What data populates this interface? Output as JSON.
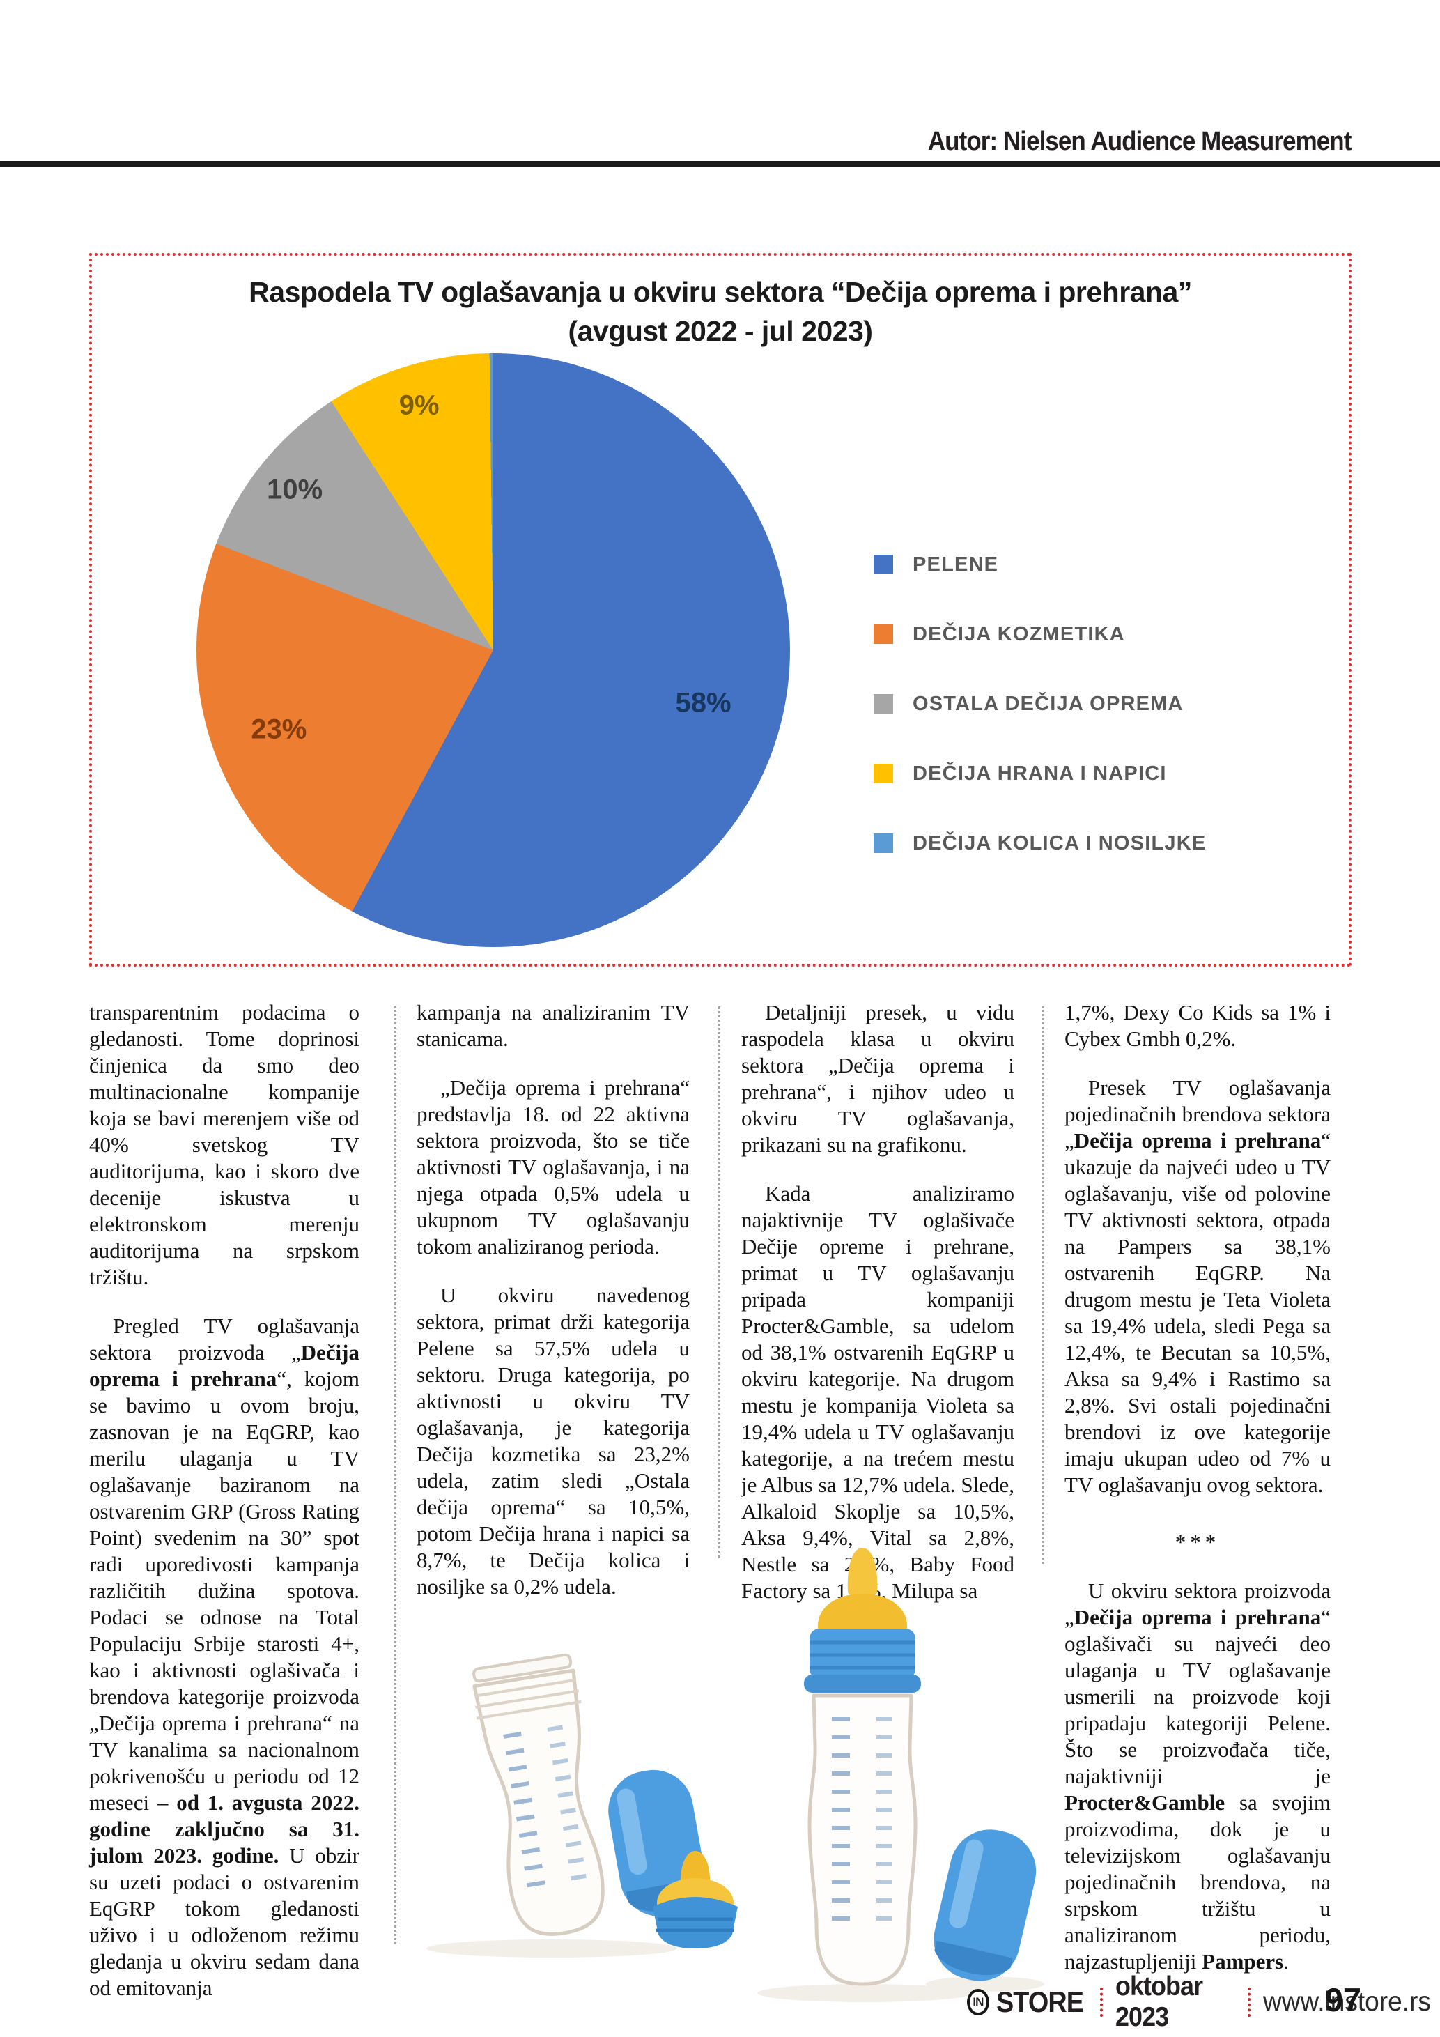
{
  "header": {
    "author_credit": "Autor: Nielsen Audience Measurement"
  },
  "chart": {
    "title_line1": "Raspodela TV oglašavanja u okviru sektora “Dečija oprema i prehrana”",
    "title_line2": "(avgust 2022 - jul 2023)"
  },
  "chart_data": {
    "type": "pie",
    "title": "Raspodela TV oglašavanja u okviru sektora “Dečija oprema i prehrana” (avgust 2022 - jul 2023)",
    "categories": [
      "PELENE",
      "DEČIJA KOZMETIKA",
      "OSTALA DEČIJA OPREMA",
      "DEČIJA HRANA I NAPICI",
      "DEČIJA KOLICA I NOSILJKE"
    ],
    "values": [
      58,
      23,
      10,
      9,
      0.2
    ],
    "display_labels": [
      "58%",
      "23%",
      "10%",
      "9%",
      ""
    ],
    "colors": [
      "#4472c4",
      "#ed7d31",
      "#a6a6a6",
      "#ffc000",
      "#5b9bd5"
    ],
    "label_colors": [
      "#17375e",
      "#843c0c",
      "#3f3f3f",
      "#7f6000",
      ""
    ],
    "legend_position": "right",
    "start_angle_deg": 0,
    "direction": "clockwise"
  },
  "article": {
    "columns": [
      {
        "paragraphs": [
          {
            "indent": false,
            "sep": false,
            "segments": [
              {
                "t": "transparentnim podacima o gledanosti. Tome doprinosi činjenica da smo deo multinacionalne kompanije koja se bavi merenjem više od 40% svetskog TV auditorijuma, kao i skoro dve decenije iskustva u elektronskom merenju auditorijuma na srpskom tržištu.",
                "b": false
              }
            ]
          },
          {
            "indent": true,
            "sep": false,
            "segments": [
              {
                "t": "Pregled TV oglašavanja sektora proizvoda „",
                "b": false
              },
              {
                "t": "Dečija oprema i prehrana",
                "b": true
              },
              {
                "t": "“, kojom se bavimo u ovom broju, zasnovan je na EqGRP, kao merilu ulaganja u TV oglašavanje baziranom na ostvarenim GRP (Gross Rating Point) svedenim na 30” spot radi uporedivosti kampanja različitih dužina spotova. Podaci se odnose na Total Populaciju Srbije starosti 4+, kao i aktivnosti oglašivača i brendova kategorije proizvoda „Dečija oprema i prehrana“ na TV kanalima sa nacionalnom pokrivenošću u periodu od 12 meseci – ",
                "b": false
              },
              {
                "t": "od 1. avgusta 2022. godine zaključno sa 31. julom 2023. godine.",
                "b": true
              },
              {
                "t": " U obzir su uzeti podaci o ostvarenim EqGRP tokom gledanosti uživo i u odloženom režimu gledanja u okviru sedam dana od emitovanja",
                "b": false
              }
            ]
          }
        ]
      },
      {
        "paragraphs": [
          {
            "indent": false,
            "sep": false,
            "segments": [
              {
                "t": "kampanja na analiziranim TV stanicama.",
                "b": false
              }
            ]
          },
          {
            "indent": true,
            "sep": false,
            "segments": [
              {
                "t": "„Dečija oprema i prehrana“ predstavlja 18. od 22 aktivna sektora proizvoda, što se tiče aktivnosti TV oglašavanja, i na njega otpada 0,5% udela u ukupnom TV oglašavanju tokom analiziranog perioda.",
                "b": false
              }
            ]
          },
          {
            "indent": true,
            "sep": false,
            "segments": [
              {
                "t": "U okviru navedenog sektora, primat drži kategorija Pelene sa 57,5% udela u sektoru. Druga kategorija, po aktivnosti u okviru TV oglašavanja, je kategorija Dečija kozmetika sa 23,2% udela, zatim sledi „Ostala dečija oprema“ sa 10,5%, potom Dečija hrana i napici sa 8,7%, te Dečija kolica i nosiljke sa 0,2% udela.",
                "b": false
              }
            ]
          }
        ]
      },
      {
        "paragraphs": [
          {
            "indent": true,
            "sep": false,
            "segments": [
              {
                "t": "Detaljniji presek, u vidu raspodela klasa u okviru sektora „Dečija oprema i prehrana“, i njihov udeo u okviru TV oglašavanja, prikazani su na grafikonu.",
                "b": false
              }
            ]
          },
          {
            "indent": true,
            "sep": false,
            "segments": [
              {
                "t": "Kada analiziramo najaktivnije TV oglašivače Dečije opreme i prehrane, primat u TV oglašavanju pripada kompaniji Procter&Gamble, sa udelom od 38,1% ostvarenih EqGRP u okviru kategorije. Na drugom mestu je kompanija Violeta sa 19,4% udela u TV oglašavanju kategorije, a na trećem mestu je Albus sa 12,7% udela. Slede, Alkaloid Skoplje sa 10,5%, Aksa 9,4%, Vital sa 2,8%, Nestle sa 2,5%, Baby Food Factory sa 1,7%, Milupa sa",
                "b": false
              }
            ]
          }
        ]
      },
      {
        "paragraphs": [
          {
            "indent": false,
            "sep": false,
            "segments": [
              {
                "t": "1,7%, Dexy Co Kids sa 1% i Cybex Gmbh 0,2%.",
                "b": false
              }
            ]
          },
          {
            "indent": true,
            "sep": false,
            "segments": [
              {
                "t": "Presek TV oglašavanja pojedinačnih brendova sektora „",
                "b": false
              },
              {
                "t": "Dečija oprema i prehrana",
                "b": true
              },
              {
                "t": "“ ukazuje da najveći udeo u TV oglašavanju, više od polovine TV aktivnosti sektora, otpada na Pampers sa 38,1% ostvarenih EqGRP. Na drugom mestu je Teta Violeta sa 19,4% udela, sledi Pega sa 12,4%, te Becutan sa 10,5%, Aksa sa 9,4% i Rastimo sa 2,8%. Svi ostali pojedinačni brendovi iz ove kategorije imaju ukupan udeo od 7% u TV oglašavanju ovog sektora.",
                "b": false
              }
            ]
          },
          {
            "indent": false,
            "sep": true,
            "segments": [
              {
                "t": "***",
                "b": false
              }
            ]
          },
          {
            "indent": true,
            "sep": false,
            "segments": [
              {
                "t": "U okviru sektora proizvoda „",
                "b": false
              },
              {
                "t": "Dečija oprema i prehrana",
                "b": true
              },
              {
                "t": "“ oglašivači su najveći deo ulaganja u TV oglašavanje usmerili na proizvode koji pripadaju kategoriji Pelene. Što se proizvođača tiče, najaktivniji je ",
                "b": false
              },
              {
                "t": "Procter&Gamble",
                "b": true
              },
              {
                "t": " sa svojim proizvodima, dok je u televizijskom oglašavanju pojedinačnih brendova, na srpskom tržištu u analiziranom periodu, najzastupljeniji ",
                "b": false
              },
              {
                "t": "Pampers",
                "b": true
              },
              {
                "t": ".",
                "b": false
              }
            ]
          }
        ]
      }
    ]
  },
  "illustrations": {
    "left": "baby-bottle-open-with-cap-and-teat",
    "right": "baby-bottle-assembled-with-cap"
  },
  "footer": {
    "logo_mark": "IN",
    "logo_text": "STORE",
    "issue": "oktobar 2023",
    "website": "www.instore.rs",
    "page_number": "97"
  }
}
